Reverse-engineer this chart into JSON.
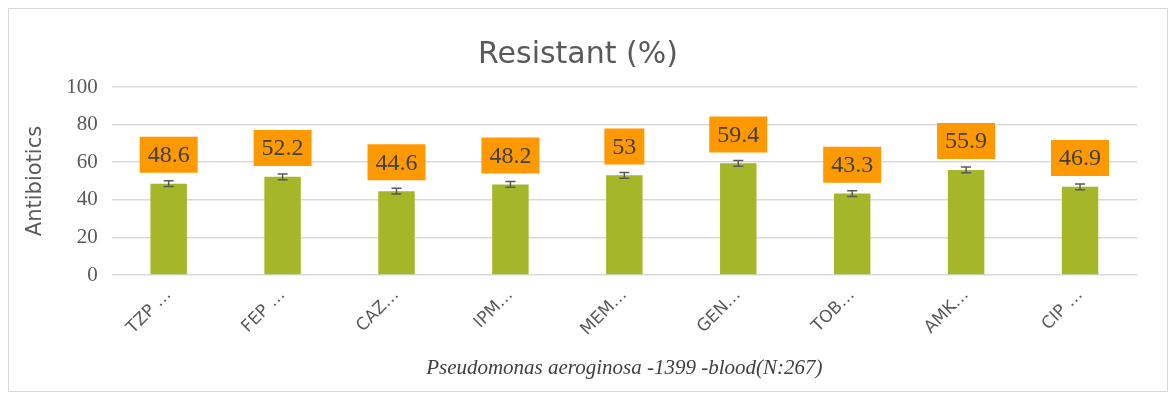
{
  "chart_data": {
    "type": "bar",
    "title": "Resistant (%)",
    "xlabel": "Pseudomonas aeroginosa -1399 -blood(N:267)",
    "ylabel": "Antibiotics",
    "categories": [
      "TZP …",
      "FEP …",
      "CAZ…",
      "IPM…",
      "MEM…",
      "GEN…",
      "TOB…",
      "AMK…",
      "CIP …"
    ],
    "values": [
      48.6,
      52.2,
      44.6,
      48.2,
      53,
      59.4,
      43.3,
      55.9,
      46.9
    ],
    "errors": [
      1.5,
      1.5,
      1.5,
      1.5,
      1.5,
      1.5,
      1.5,
      1.5,
      1.5
    ],
    "color": "#a5b628",
    "ylim": [
      0,
      100
    ],
    "yticks": [
      0,
      20,
      40,
      60,
      80,
      100
    ],
    "grid": "y",
    "legend": false,
    "data_labels": true
  }
}
